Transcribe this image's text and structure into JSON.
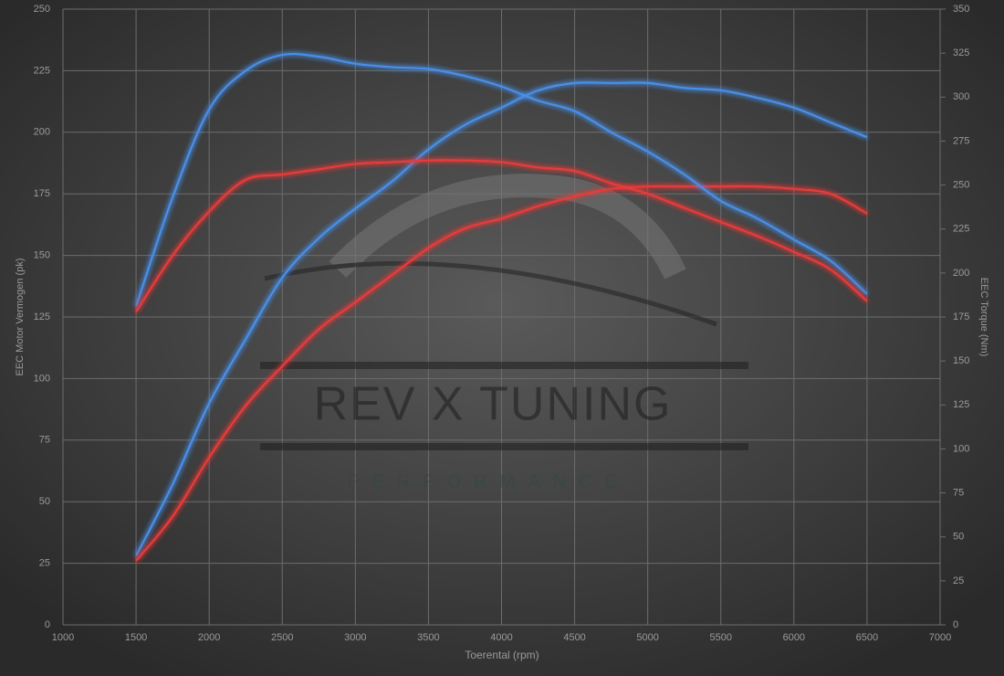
{
  "chart_data": {
    "type": "line",
    "watermark": {
      "title": "REV X TUNING",
      "subtitle": "PERFORMANCE"
    },
    "xlabel": "Toerental (rpm)",
    "ylabel": "EEC Motor Vermogen (pk)",
    "y2label": "EEC Torque (Nm)",
    "x": [
      1500,
      1750,
      2000,
      2250,
      2500,
      2750,
      3000,
      3250,
      3500,
      3750,
      4000,
      4250,
      4500,
      4750,
      5000,
      5250,
      5500,
      5750,
      6000,
      6250,
      6500
    ],
    "xlim": [
      1000,
      7000
    ],
    "xticks": [
      1000,
      1500,
      2000,
      2500,
      3000,
      3500,
      4000,
      4500,
      5000,
      5500,
      6000,
      6500,
      7000
    ],
    "ylim": [
      0,
      250
    ],
    "yticks": [
      0,
      25,
      50,
      75,
      100,
      125,
      150,
      175,
      200,
      225,
      250
    ],
    "y2lim": [
      0,
      350
    ],
    "y2ticks": [
      0,
      25,
      50,
      75,
      100,
      125,
      150,
      175,
      200,
      225,
      250,
      275,
      300,
      325,
      350
    ],
    "grid": true,
    "series": [
      {
        "color": "#4a8fe8",
        "values": [
          28,
          57,
          90,
          116,
          141,
          157,
          169,
          180,
          193,
          203,
          210,
          217,
          220,
          220,
          220,
          218,
          217,
          214,
          210,
          204,
          198
        ]
      },
      {
        "color": "#e83a3a",
        "values": [
          26,
          44,
          68,
          89,
          105,
          120,
          131,
          142,
          153,
          161,
          165,
          170,
          174,
          177,
          178,
          178,
          178,
          178,
          177,
          175,
          167
        ]
      },
      {
        "color": "#4a8fe8",
        "axis": "y2",
        "values": [
          181,
          243,
          293,
          315,
          324,
          323,
          319,
          317,
          316,
          312,
          306,
          298,
          292,
          280,
          269,
          256,
          241,
          231,
          219,
          207,
          188
        ]
      },
      {
        "color": "#e83a3a",
        "axis": "y2",
        "values": [
          178,
          210,
          235,
          253,
          256,
          259,
          262,
          263,
          264,
          264,
          263,
          260,
          258,
          251,
          245,
          237,
          229,
          221,
          212,
          202,
          184
        ]
      }
    ]
  }
}
